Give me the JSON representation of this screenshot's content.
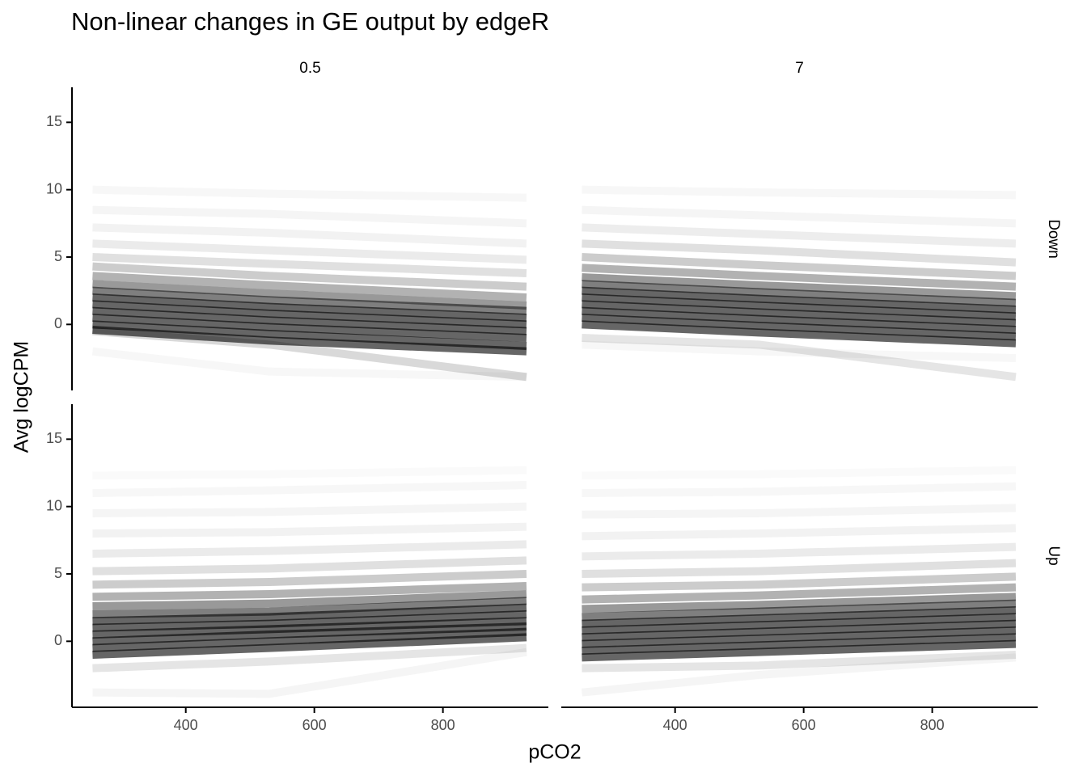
{
  "chart_data": {
    "type": "line",
    "title": "Non-linear changes in GE output by edgeR",
    "xlabel": "pCO2",
    "ylabel": "Avg logCPM",
    "facet_cols": [
      "0.5",
      "7"
    ],
    "facet_rows": [
      "Down",
      "Up"
    ],
    "x": [
      255,
      530,
      930
    ],
    "xlim": [
      223,
      964
    ],
    "xticks": [
      400,
      600,
      800
    ],
    "ylim": [
      -4.9,
      17.6
    ],
    "yticks": [
      0,
      5,
      10,
      15
    ],
    "color": "#000000",
    "panels": [
      {
        "series": [
          {
            "values": [
              -0.4,
              -1.2,
              -2.0
            ],
            "alpha": 0.6
          },
          {
            "values": [
              0,
              -0.7,
              -1.6
            ],
            "alpha": 0.6
          },
          {
            "values": [
              0.5,
              -0.2,
              -1.0
            ],
            "alpha": 0.6
          },
          {
            "values": [
              1,
              0.3,
              -0.5
            ],
            "alpha": 0.6
          },
          {
            "values": [
              1.5,
              0.8,
              0
            ],
            "alpha": 0.6
          },
          {
            "values": [
              2,
              1.3,
              0.5
            ],
            "alpha": 0.6
          },
          {
            "values": [
              2.5,
              1.8,
              1
            ],
            "alpha": 0.5
          },
          {
            "values": [
              3,
              2.3,
              1.4
            ],
            "alpha": 0.4
          },
          {
            "values": [
              3.6,
              2.9,
              2
            ],
            "alpha": 0.3
          },
          {
            "values": [
              4.3,
              3.6,
              2.8
            ],
            "alpha": 0.2
          },
          {
            "values": [
              5,
              4.5,
              3.8
            ],
            "alpha": 0.12
          },
          {
            "values": [
              6,
              5.5,
              4.8
            ],
            "alpha": 0.08
          },
          {
            "values": [
              7.2,
              6.8,
              6
            ],
            "alpha": 0.05
          },
          {
            "values": [
              8.5,
              8.2,
              7.5
            ],
            "alpha": 0.04
          },
          {
            "values": [
              10,
              9.7,
              9.4
            ],
            "alpha": 0.03
          },
          {
            "values": [
              -2,
              -3.5,
              -3.9
            ],
            "alpha": 0.03
          },
          {
            "values": [
              -0.5,
              -1.5,
              -3.9
            ],
            "alpha": 0.15
          }
        ]
      },
      {
        "series": [
          {
            "values": [
              0,
              -0.6,
              -1.4
            ],
            "alpha": 0.6
          },
          {
            "values": [
              0.5,
              -0.1,
              -0.9
            ],
            "alpha": 0.6
          },
          {
            "values": [
              1,
              0.4,
              -0.4
            ],
            "alpha": 0.6
          },
          {
            "values": [
              1.5,
              0.9,
              0.1
            ],
            "alpha": 0.6
          },
          {
            "values": [
              2,
              1.4,
              0.6
            ],
            "alpha": 0.6
          },
          {
            "values": [
              2.5,
              1.9,
              1.1
            ],
            "alpha": 0.6
          },
          {
            "values": [
              3,
              2.4,
              1.6
            ],
            "alpha": 0.5
          },
          {
            "values": [
              3.5,
              2.9,
              2.1
            ],
            "alpha": 0.4
          },
          {
            "values": [
              4.2,
              3.6,
              2.8
            ],
            "alpha": 0.3
          },
          {
            "values": [
              5,
              4.4,
              3.6
            ],
            "alpha": 0.2
          },
          {
            "values": [
              6,
              5.5,
              4.6
            ],
            "alpha": 0.12
          },
          {
            "values": [
              7.2,
              6.7,
              6
            ],
            "alpha": 0.07
          },
          {
            "values": [
              8.5,
              8.1,
              7.5
            ],
            "alpha": 0.04
          },
          {
            "values": [
              10,
              9.8,
              9.6
            ],
            "alpha": 0.03
          },
          {
            "values": [
              -1,
              -1.5,
              -3.9
            ],
            "alpha": 0.1
          },
          {
            "values": [
              -1.5,
              -2,
              -2.5
            ],
            "alpha": 0.03
          }
        ]
      },
      {
        "series": [
          {
            "values": [
              -1,
              -0.5,
              0.3
            ],
            "alpha": 0.6
          },
          {
            "values": [
              -0.5,
              0,
              0.7
            ],
            "alpha": 0.6
          },
          {
            "values": [
              0,
              0.5,
              1.1
            ],
            "alpha": 0.6
          },
          {
            "values": [
              0.5,
              0.9,
              1.5
            ],
            "alpha": 0.6
          },
          {
            "values": [
              1,
              1.3,
              2
            ],
            "alpha": 0.6
          },
          {
            "values": [
              1.5,
              1.8,
              2.5
            ],
            "alpha": 0.6
          },
          {
            "values": [
              2,
              2.2,
              3
            ],
            "alpha": 0.5
          },
          {
            "values": [
              2.6,
              2.8,
              3.5
            ],
            "alpha": 0.4
          },
          {
            "values": [
              3.3,
              3.5,
              4.1
            ],
            "alpha": 0.3
          },
          {
            "values": [
              4.2,
              4.4,
              5
            ],
            "alpha": 0.2
          },
          {
            "values": [
              5.2,
              5.4,
              6
            ],
            "alpha": 0.12
          },
          {
            "values": [
              6.5,
              6.7,
              7.2
            ],
            "alpha": 0.08
          },
          {
            "values": [
              8,
              8.1,
              8.5
            ],
            "alpha": 0.05
          },
          {
            "values": [
              9.5,
              9.6,
              10
            ],
            "alpha": 0.04
          },
          {
            "values": [
              11,
              11.2,
              11.6
            ],
            "alpha": 0.03
          },
          {
            "values": [
              12.3,
              12.4,
              12.7
            ],
            "alpha": 0.02
          },
          {
            "values": [
              -2,
              -1.5,
              -0.5
            ],
            "alpha": 0.1
          },
          {
            "values": [
              -3.8,
              -3.9,
              -0.8
            ],
            "alpha": 0.04
          }
        ]
      },
      {
        "series": [
          {
            "values": [
              -1.2,
              -0.8,
              -0.2
            ],
            "alpha": 0.6
          },
          {
            "values": [
              -0.7,
              -0.3,
              0.3
            ],
            "alpha": 0.6
          },
          {
            "values": [
              -0.2,
              0.2,
              0.8
            ],
            "alpha": 0.6
          },
          {
            "values": [
              0.3,
              0.7,
              1.3
            ],
            "alpha": 0.6
          },
          {
            "values": [
              0.8,
              1.2,
              1.8
            ],
            "alpha": 0.6
          },
          {
            "values": [
              1.3,
              1.7,
              2.3
            ],
            "alpha": 0.6
          },
          {
            "values": [
              1.8,
              2.2,
              2.8
            ],
            "alpha": 0.5
          },
          {
            "values": [
              2.4,
              2.7,
              3.3
            ],
            "alpha": 0.4
          },
          {
            "values": [
              3.1,
              3.4,
              4
            ],
            "alpha": 0.3
          },
          {
            "values": [
              4,
              4.2,
              4.8
            ],
            "alpha": 0.2
          },
          {
            "values": [
              5,
              5.2,
              5.8
            ],
            "alpha": 0.12
          },
          {
            "values": [
              6.3,
              6.5,
              7
            ],
            "alpha": 0.08
          },
          {
            "values": [
              7.8,
              8,
              8.4
            ],
            "alpha": 0.05
          },
          {
            "values": [
              9.4,
              9.5,
              9.9
            ],
            "alpha": 0.04
          },
          {
            "values": [
              11,
              11.1,
              11.5
            ],
            "alpha": 0.03
          },
          {
            "values": [
              12.3,
              12.4,
              12.7
            ],
            "alpha": 0.02
          },
          {
            "values": [
              -2,
              -1.8,
              -1
            ],
            "alpha": 0.1
          },
          {
            "values": [
              -3.8,
              -2.5,
              -1.2
            ],
            "alpha": 0.04
          }
        ]
      }
    ]
  }
}
